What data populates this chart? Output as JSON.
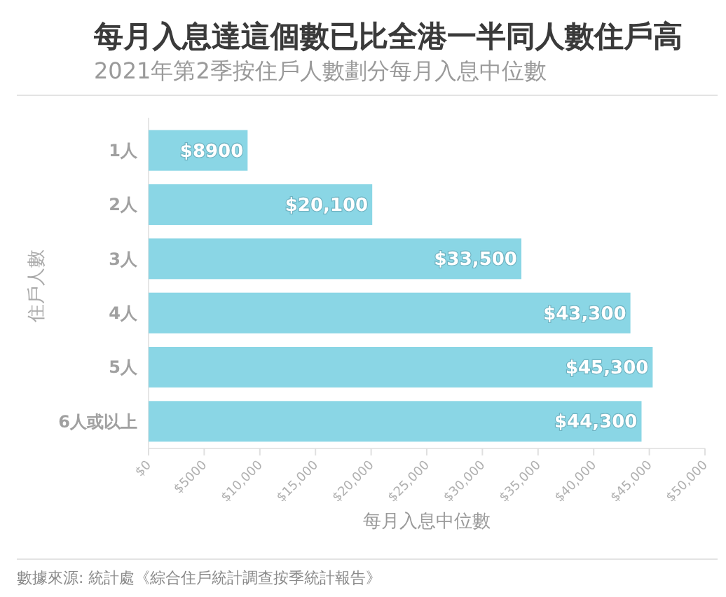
{
  "chart_data": {
    "type": "bar",
    "orientation": "horizontal",
    "title": "每月入息達這個數已比全港一半同人數住戶高",
    "subtitle": "2021年第2季按住戶人數劃分每月入息中位數",
    "xlabel": "每月入息中位數",
    "ylabel": "住戶人數",
    "categories": [
      "1人",
      "2人",
      "3人",
      "4人",
      "5人",
      "6人或以上"
    ],
    "values": [
      8900,
      20100,
      33500,
      43300,
      45300,
      44300
    ],
    "value_labels": [
      "$8900",
      "$20,100",
      "$33,500",
      "$43,300",
      "$45,300",
      "$44,300"
    ],
    "color": "#8ad6e5",
    "xlim": [
      0,
      50000
    ],
    "xticks": [
      {
        "value": 0,
        "label": "$0"
      },
      {
        "value": 5000,
        "label": "$5000"
      },
      {
        "value": 10000,
        "label": "$10,000"
      },
      {
        "value": 15000,
        "label": "$15,000"
      },
      {
        "value": 20000,
        "label": "$20,000"
      },
      {
        "value": 25000,
        "label": "$25,000"
      },
      {
        "value": 30000,
        "label": "$30,000"
      },
      {
        "value": 35000,
        "label": "$35,000"
      },
      {
        "value": 40000,
        "label": "$40,000"
      },
      {
        "value": 45000,
        "label": "$45,000"
      },
      {
        "value": 50000,
        "label": "$50,000"
      }
    ],
    "grid": false,
    "annotations": [
      "數據來源: 統計處《綜合住戶統計調查按季統計報告》"
    ]
  }
}
